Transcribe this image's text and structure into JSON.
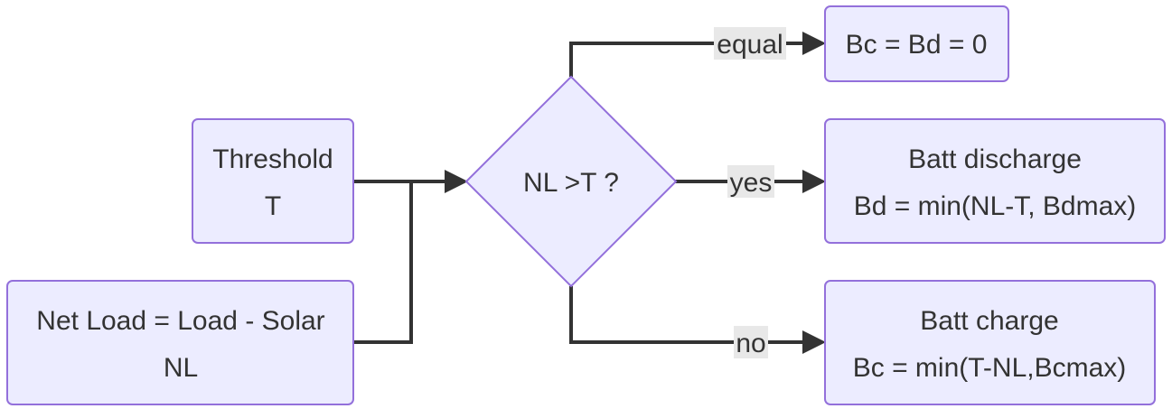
{
  "colors": {
    "node_fill": "#ececff",
    "node_stroke": "#9370db",
    "edge": "#333333",
    "label_bg": "#e8e8e8",
    "text": "#333333"
  },
  "nodes": {
    "threshold": {
      "line1": "Threshold",
      "line2": "T"
    },
    "net_load": {
      "line1": "Net Load = Load - Solar",
      "line2": "NL"
    },
    "decision": {
      "text": "NL >T ?"
    },
    "equal_result": {
      "text": "Bc = Bd = 0"
    },
    "discharge": {
      "line1": "Batt discharge",
      "line2": "Bd = min(NL-T, Bdmax)"
    },
    "charge": {
      "line1": "Batt charge",
      "line2": "Bc = min(T-NL,Bcmax)"
    }
  },
  "edges": {
    "equal": "equal",
    "yes": "yes",
    "no": "no"
  }
}
